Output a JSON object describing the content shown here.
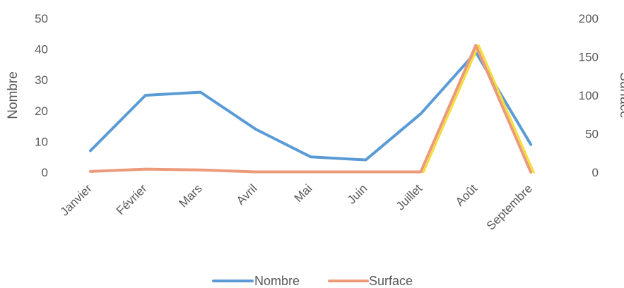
{
  "chart_data": {
    "type": "line",
    "categories": [
      "Janvier",
      "Février",
      "Mars",
      "Avril",
      "Mai",
      "Juin",
      "Juillet",
      "Août",
      "Septembre"
    ],
    "series": [
      {
        "name": "Nombre",
        "axis": "left",
        "color": "#5B9BD5",
        "values": [
          7,
          25,
          26,
          14,
          5,
          4,
          19,
          39,
          9
        ]
      },
      {
        "name": "Surface",
        "axis": "right",
        "color": "#ED9A7A",
        "highlight_color": "#F2E03A",
        "values": [
          1,
          4,
          3,
          0.5,
          0.5,
          0.5,
          0.5,
          165,
          0
        ]
      }
    ],
    "y_left": {
      "label": "Nombre",
      "min": 0,
      "max": 50,
      "ticks": [
        0,
        10,
        20,
        30,
        40,
        50
      ]
    },
    "y_right": {
      "label": "Surface",
      "min": 0,
      "max": 200,
      "ticks": [
        0,
        50,
        100,
        150,
        200
      ]
    },
    "grid": false,
    "legend_position": "bottom"
  }
}
